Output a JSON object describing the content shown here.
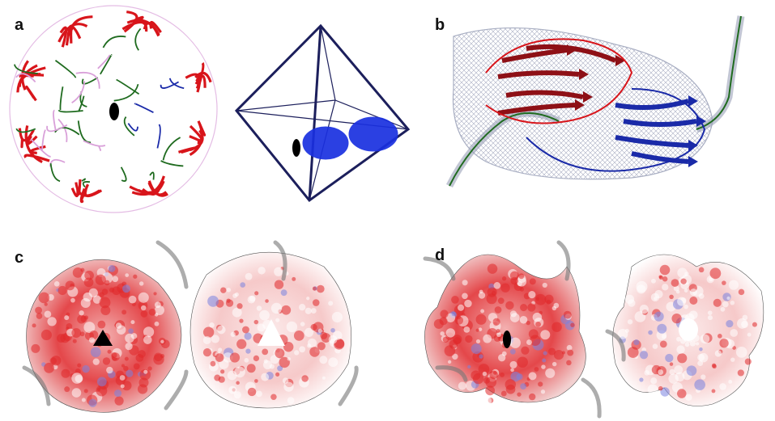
{
  "figure": {
    "panels": [
      {
        "label": "a"
      },
      {
        "label": "b"
      },
      {
        "label": "c"
      },
      {
        "label": "d"
      }
    ],
    "colors": {
      "ribbon_red": "#d8151b",
      "ribbon_green": "#1f6b1f",
      "ribbon_blue": "#1a2aa8",
      "ribbon_pink": "#d9a0d9",
      "mesh": "#9aa0b8",
      "octahedron_edge": "#1c1f5c",
      "symmetry_ellipse": "#1a30e0",
      "surface_red": "#e0282a",
      "surface_blue": "#7a84e0",
      "marker": "#000000"
    },
    "icons": [
      "twofold-symmetry-marker-icon",
      "threefold-symmetry-marker-icon"
    ]
  }
}
